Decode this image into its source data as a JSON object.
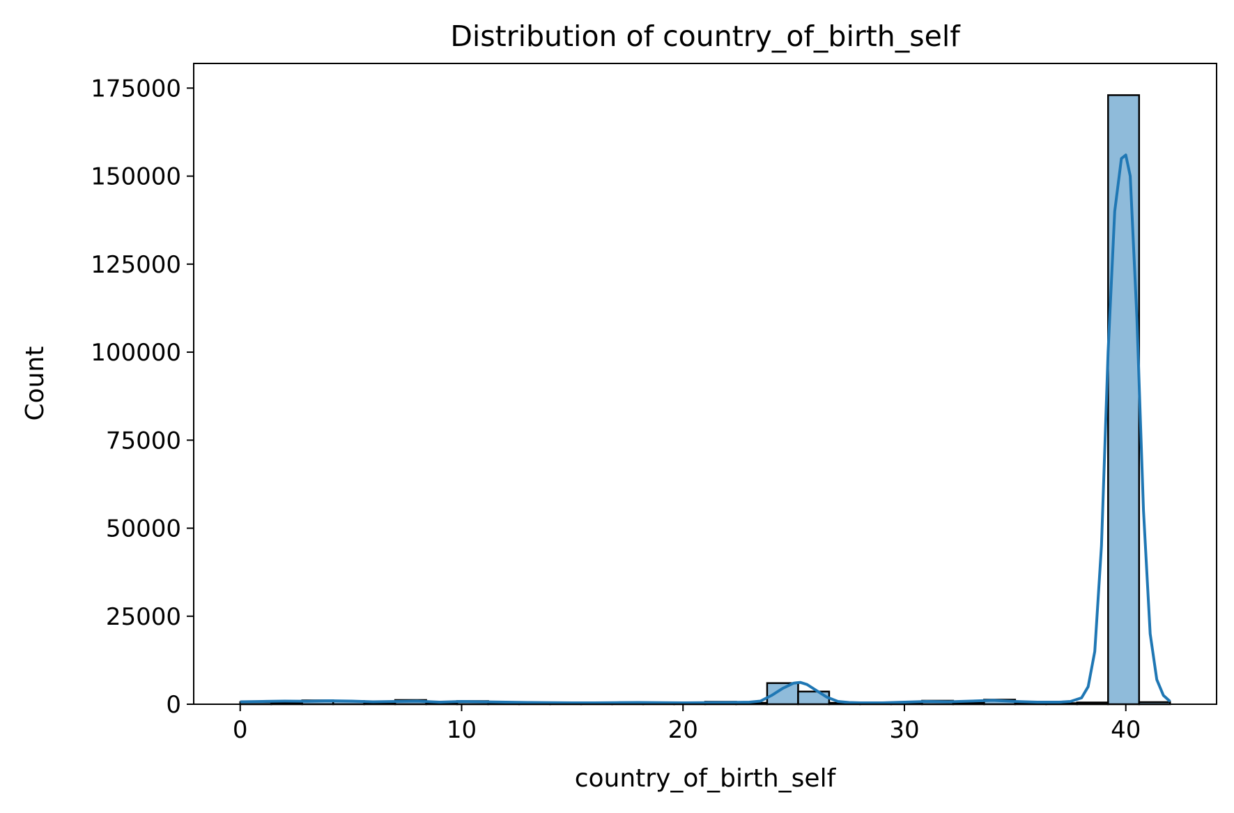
{
  "chart_data": {
    "type": "bar",
    "title": "Distribution of country_of_birth_self",
    "xlabel": "country_of_birth_self",
    "ylabel": "Count",
    "xlim": [
      -2.1,
      44.1
    ],
    "ylim": [
      0,
      182000
    ],
    "x_ticks": [
      0,
      10,
      20,
      30,
      40
    ],
    "y_ticks": [
      0,
      25000,
      50000,
      75000,
      100000,
      125000,
      150000,
      175000
    ],
    "bin_width": 1.4,
    "bars": [
      {
        "x0": 0.0,
        "count": 600
      },
      {
        "x0": 1.4,
        "count": 400
      },
      {
        "x0": 2.8,
        "count": 1100
      },
      {
        "x0": 4.2,
        "count": 900
      },
      {
        "x0": 5.6,
        "count": 500
      },
      {
        "x0": 7.0,
        "count": 1200
      },
      {
        "x0": 8.4,
        "count": 300
      },
      {
        "x0": 9.8,
        "count": 900
      },
      {
        "x0": 11.2,
        "count": 350
      },
      {
        "x0": 12.6,
        "count": 300
      },
      {
        "x0": 14.0,
        "count": 250
      },
      {
        "x0": 15.4,
        "count": 200
      },
      {
        "x0": 16.8,
        "count": 250
      },
      {
        "x0": 18.2,
        "count": 300
      },
      {
        "x0": 19.6,
        "count": 250
      },
      {
        "x0": 21.0,
        "count": 700
      },
      {
        "x0": 22.4,
        "count": 400
      },
      {
        "x0": 23.8,
        "count": 6000
      },
      {
        "x0": 25.2,
        "count": 3600
      },
      {
        "x0": 26.6,
        "count": 400
      },
      {
        "x0": 28.0,
        "count": 200
      },
      {
        "x0": 29.4,
        "count": 300
      },
      {
        "x0": 30.8,
        "count": 1000
      },
      {
        "x0": 32.2,
        "count": 400
      },
      {
        "x0": 33.6,
        "count": 1300
      },
      {
        "x0": 35.0,
        "count": 400
      },
      {
        "x0": 36.4,
        "count": 300
      },
      {
        "x0": 37.8,
        "count": 500
      },
      {
        "x0": 39.2,
        "count": 173000
      },
      {
        "x0": 40.6,
        "count": 600
      }
    ],
    "kde": {
      "x": [
        0,
        1,
        2,
        3,
        4,
        5,
        6,
        7,
        8,
        9,
        10,
        11,
        12,
        13,
        14,
        15,
        16,
        17,
        18,
        19,
        20,
        21,
        22,
        23,
        23.5,
        24,
        24.5,
        25,
        25.3,
        25.6,
        26,
        26.5,
        27,
        27.5,
        28,
        29,
        30,
        31,
        32,
        33,
        34,
        35,
        36,
        37,
        37.5,
        38,
        38.3,
        38.6,
        38.9,
        39.2,
        39.5,
        39.8,
        40.0,
        40.2,
        40.5,
        40.8,
        41.1,
        41.4,
        41.7,
        42.0
      ],
      "y": [
        700,
        800,
        900,
        850,
        1000,
        900,
        700,
        800,
        900,
        600,
        800,
        700,
        600,
        500,
        450,
        400,
        400,
        450,
        500,
        450,
        400,
        450,
        500,
        600,
        900,
        2500,
        4500,
        6000,
        6200,
        5600,
        4000,
        2000,
        800,
        500,
        400,
        400,
        600,
        800,
        700,
        900,
        1100,
        800,
        600,
        600,
        800,
        1800,
        5000,
        15000,
        45000,
        100000,
        140000,
        155000,
        156000,
        150000,
        110000,
        55000,
        20000,
        7000,
        2500,
        800
      ]
    },
    "colors": {
      "bar_fill": "#8fbbda",
      "bar_edge": "#000000",
      "kde_line": "#1f77b4"
    },
    "grid": false,
    "legend": "none"
  }
}
